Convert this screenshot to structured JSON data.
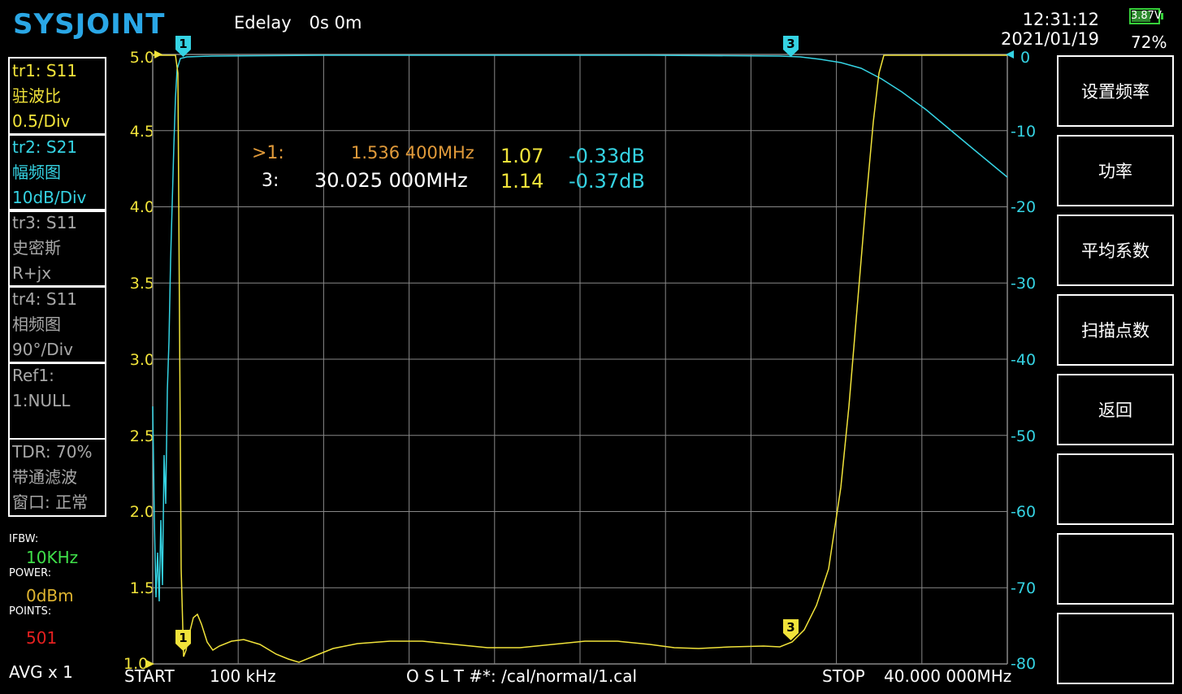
{
  "header": {
    "brand": "SYSJOINT",
    "edelay_label": "Edelay",
    "edelay_value": "0s 0m",
    "time": "12:31:12",
    "date": "2021/01/19",
    "battery_voltage": "3.87V",
    "battery_percent": "72%",
    "battery_level": 0.72
  },
  "traces": [
    {
      "line1": "tr1:  S11",
      "line2": "驻波比",
      "line3": "0.5/Div",
      "color": "#f1e33a"
    },
    {
      "line1": "tr2:  S21",
      "line2": "幅频图",
      "line3": "10dB/Div",
      "color": "#35d3e3"
    },
    {
      "line1": "tr3:  S11",
      "line2": "史密斯",
      "line3": "R+jx",
      "color": "#a8a8a8"
    },
    {
      "line1": "tr4:  S11",
      "line2": "相频图",
      "line3": "90°/Div",
      "color": "#a8a8a8"
    },
    {
      "line1": "Ref1:",
      "line2": "1:NULL",
      "line3": "",
      "color": "#a8a8a8"
    },
    {
      "line1": "TDR: 70%",
      "line2": "带通滤波",
      "line3": "窗口: 正常",
      "color": "#a8a8a8"
    }
  ],
  "status": {
    "ifbw_label": "IFBW:",
    "ifbw_value": "10KHz",
    "power_label": "POWER:",
    "power_value": "0dBm",
    "points_label": "POINTS:",
    "points_value": "501",
    "avg": "AVG x 1"
  },
  "markers": [
    {
      "prefix": ">1:",
      "freq": "1.536 400MHz",
      "swr": "1.07",
      "db": "-0.33dB"
    },
    {
      "prefix": "3:",
      "freq": "30.025 000MHz",
      "swr": "1.14",
      "db": "-0.37dB"
    }
  ],
  "axes": {
    "left_ticks": [
      "5.0",
      "4.5",
      "4.0",
      "3.5",
      "3.0",
      "2.5",
      "2.0",
      "1.5",
      "1.0"
    ],
    "right_ticks": [
      "0",
      "-10",
      "-20",
      "-30",
      "-40",
      "-50",
      "-60",
      "-70",
      "-80"
    ]
  },
  "footer": {
    "start_label": "START",
    "start_value": "100 kHz",
    "cal": "O S L T #*: /cal/normal/1.cal",
    "stop_label": "STOP",
    "stop_value": "40.000 000MHz"
  },
  "softkeys": [
    "设置频率",
    "功率",
    "平均系数",
    "扫描点数",
    "返回",
    "",
    "",
    ""
  ],
  "marker_flags": [
    "1",
    "3"
  ],
  "colors": {
    "trace1": "#f1e33a",
    "trace2": "#35d3e3",
    "grid": "#888888",
    "brand": "#2aa7e6"
  }
}
